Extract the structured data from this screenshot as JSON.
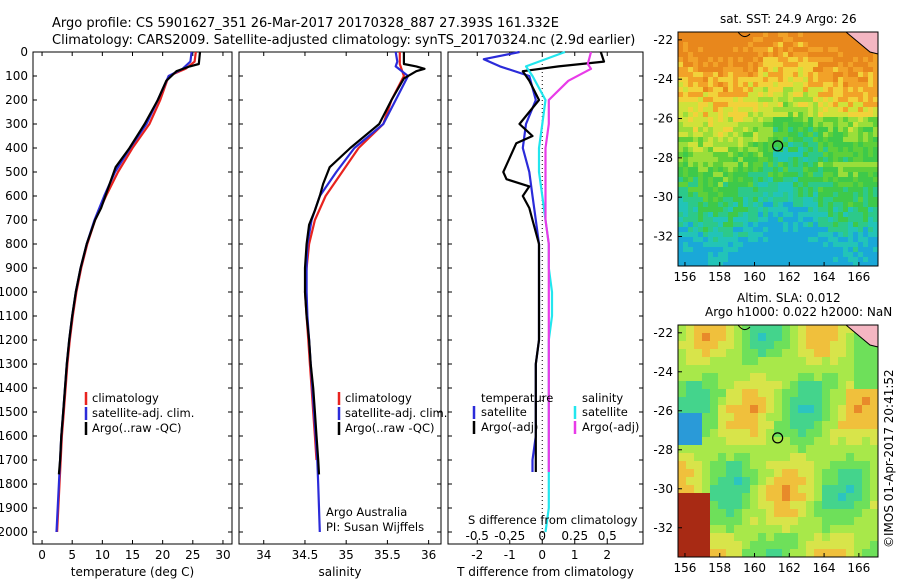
{
  "header": {
    "title_line1": "Argo profile: CS 5901627_351 26-Mar-2017 20170328_887 27.393S 161.332E",
    "title_line2": "Climatology: CARS2009. Satellite-adjusted climatology: synTS_20170324.nc (2.9d earlier)"
  },
  "colors": {
    "climatology": "#e8231f",
    "satellite": "#2b2bd9",
    "argo": "#000000",
    "sal_satellite": "#22e6ee",
    "sal_argo": "#e83be8"
  },
  "depth_axis": {
    "ticks": [
      0,
      100,
      200,
      300,
      400,
      500,
      600,
      700,
      800,
      900,
      1000,
      1100,
      1200,
      1300,
      1400,
      1500,
      1600,
      1700,
      1800,
      1900,
      2000
    ],
    "range": [
      0,
      2050
    ]
  },
  "credit": "©IMOS 01-Apr-2017 20:41:52",
  "chart_data": [
    {
      "id": "temperature",
      "type": "line",
      "xlabel": "temperature (deg C)",
      "xlim": [
        -1.5,
        31.5
      ],
      "xticks": [
        0,
        5,
        10,
        15,
        20,
        25,
        30
      ],
      "ylim": [
        0,
        2050
      ],
      "legend": [
        "climatology",
        "satellite-adj. clim.",
        "Argo(..raw -QC)"
      ],
      "series": [
        {
          "name": "climatology",
          "color": "#e8231f",
          "points": [
            [
              25.5,
              0
            ],
            [
              25.3,
              40
            ],
            [
              23.8,
              70
            ],
            [
              21,
              100
            ],
            [
              19.6,
              200
            ],
            [
              17.8,
              300
            ],
            [
              15,
              400
            ],
            [
              12.6,
              500
            ],
            [
              10.6,
              600
            ],
            [
              8.8,
              700
            ],
            [
              7.5,
              800
            ],
            [
              6.5,
              900
            ],
            [
              5.7,
              1000
            ],
            [
              5.1,
              1100
            ],
            [
              4.6,
              1200
            ],
            [
              4.2,
              1300
            ],
            [
              3.9,
              1400
            ],
            [
              3.6,
              1500
            ],
            [
              3.3,
              1600
            ],
            [
              3.1,
              1700
            ],
            [
              2.9,
              1800
            ],
            [
              2.7,
              1900
            ],
            [
              2.5,
              2000
            ]
          ]
        },
        {
          "name": "satellite-adj. clim.",
          "color": "#2b2bd9",
          "points": [
            [
              24.8,
              0
            ],
            [
              24.6,
              40
            ],
            [
              23.3,
              70
            ],
            [
              21,
              100
            ],
            [
              19.2,
              200
            ],
            [
              17.3,
              300
            ],
            [
              14.6,
              400
            ],
            [
              12.1,
              500
            ],
            [
              10.3,
              600
            ],
            [
              8.7,
              700
            ],
            [
              7.4,
              800
            ],
            [
              6.4,
              900
            ],
            [
              5.6,
              1000
            ],
            [
              5,
              1100
            ],
            [
              4.5,
              1200
            ],
            [
              4.1,
              1300
            ],
            [
              3.8,
              1400
            ],
            [
              3.5,
              1500
            ],
            [
              3.2,
              1600
            ],
            [
              3,
              1700
            ],
            [
              2.8,
              1800
            ],
            [
              2.6,
              1900
            ],
            [
              2.4,
              2000
            ]
          ]
        },
        {
          "name": "Argo(..raw -QC)",
          "color": "#000000",
          "points": [
            [
              26.2,
              0
            ],
            [
              26,
              50
            ],
            [
              24.5,
              60
            ],
            [
              22.3,
              80
            ],
            [
              20.6,
              120
            ],
            [
              19.2,
              200
            ],
            [
              17,
              300
            ],
            [
              14.5,
              400
            ],
            [
              12.2,
              480
            ],
            [
              11.2,
              550
            ],
            [
              9.8,
              650
            ],
            [
              8.8,
              700
            ],
            [
              7.4,
              800
            ],
            [
              6.4,
              900
            ],
            [
              5.6,
              1000
            ],
            [
              5,
              1100
            ],
            [
              4.5,
              1200
            ],
            [
              4.1,
              1300
            ],
            [
              3.8,
              1400
            ],
            [
              3.5,
              1500
            ],
            [
              3.2,
              1600
            ],
            [
              3,
              1700
            ],
            [
              2.8,
              1760
            ]
          ]
        }
      ]
    },
    {
      "id": "salinity",
      "type": "line",
      "xlabel": "salinity",
      "xlim": [
        33.7,
        36.15
      ],
      "xticks": [
        34,
        34.5,
        35,
        35.5,
        36
      ],
      "ylim": [
        0,
        2050
      ],
      "legend": [
        "climatology",
        "satellite-adj. clim.",
        "Argo(..raw -QC)"
      ],
      "annotation_line1": "Argo Australia",
      "annotation_line2": "PI: Susan Wijffels",
      "series": [
        {
          "name": "climatology",
          "color": "#e8231f",
          "points": [
            [
              35.65,
              0
            ],
            [
              35.65,
              50
            ],
            [
              35.7,
              100
            ],
            [
              35.55,
              200
            ],
            [
              35.45,
              300
            ],
            [
              35.15,
              400
            ],
            [
              34.95,
              500
            ],
            [
              34.75,
              600
            ],
            [
              34.62,
              700
            ],
            [
              34.55,
              800
            ],
            [
              34.52,
              900
            ],
            [
              34.5,
              1000
            ],
            [
              34.52,
              1100
            ],
            [
              34.54,
              1200
            ],
            [
              34.56,
              1300
            ],
            [
              34.58,
              1400
            ],
            [
              34.6,
              1500
            ],
            [
              34.62,
              1600
            ],
            [
              34.64,
              1700
            ]
          ]
        },
        {
          "name": "satellite-adj. clim.",
          "color": "#2b2bd9",
          "points": [
            [
              35.6,
              0
            ],
            [
              35.62,
              40
            ],
            [
              35.6,
              60
            ],
            [
              35.75,
              100
            ],
            [
              35.6,
              200
            ],
            [
              35.45,
              300
            ],
            [
              35.1,
              400
            ],
            [
              34.88,
              500
            ],
            [
              34.68,
              600
            ],
            [
              34.58,
              700
            ],
            [
              34.53,
              800
            ],
            [
              34.52,
              900
            ],
            [
              34.52,
              1000
            ],
            [
              34.53,
              1100
            ],
            [
              34.55,
              1200
            ],
            [
              34.57,
              1300
            ],
            [
              34.59,
              1400
            ],
            [
              34.61,
              1500
            ],
            [
              34.63,
              1600
            ],
            [
              34.65,
              1700
            ],
            [
              34.66,
              1800
            ],
            [
              34.67,
              1900
            ],
            [
              34.68,
              2000
            ]
          ]
        },
        {
          "name": "Argo(..raw -QC)",
          "color": "#000000",
          "points": [
            [
              35.7,
              0
            ],
            [
              35.7,
              50
            ],
            [
              35.85,
              60
            ],
            [
              35.95,
              70
            ],
            [
              35.85,
              80
            ],
            [
              35.7,
              110
            ],
            [
              35.55,
              200
            ],
            [
              35.4,
              300
            ],
            [
              35.05,
              400
            ],
            [
              34.8,
              480
            ],
            [
              34.72,
              550
            ],
            [
              34.68,
              600
            ],
            [
              34.62,
              660
            ],
            [
              34.55,
              720
            ],
            [
              34.52,
              800
            ],
            [
              34.5,
              900
            ],
            [
              34.5,
              1000
            ],
            [
              34.52,
              1100
            ],
            [
              34.55,
              1200
            ],
            [
              34.57,
              1300
            ],
            [
              34.6,
              1400
            ],
            [
              34.62,
              1500
            ],
            [
              34.64,
              1600
            ],
            [
              34.66,
              1700
            ],
            [
              34.67,
              1760
            ]
          ]
        }
      ]
    },
    {
      "id": "difference",
      "type": "line",
      "xlabel": "T difference from climatology",
      "xlabel_top": "S difference from climatology",
      "xlim": [
        -2.9,
        3.1
      ],
      "xticks": [
        -2,
        -1,
        0,
        1,
        2
      ],
      "xticks_top": [
        "-0.5",
        "-0.25",
        "0",
        "0.25",
        "0.5"
      ],
      "xticks_top_pos": [
        -2,
        -1,
        0,
        1,
        2
      ],
      "ylim": [
        0,
        2050
      ],
      "legend_temperature": {
        "heading": "temperature",
        "items": [
          "satellite",
          "Argo(-adj)"
        ]
      },
      "legend_salinity": {
        "heading": "salinity",
        "items": [
          "satellite",
          "Argo(-adj)"
        ]
      },
      "series": [
        {
          "name": "T satellite",
          "color": "#2b2bd9",
          "points": [
            [
              -0.7,
              0
            ],
            [
              -1.8,
              30
            ],
            [
              -1.3,
              60
            ],
            [
              -0.4,
              100
            ],
            [
              -0.2,
              200
            ],
            [
              -0.5,
              300
            ],
            [
              -0.6,
              400
            ],
            [
              -0.4,
              500
            ],
            [
              -0.3,
              600
            ],
            [
              -0.2,
              700
            ],
            [
              -0.1,
              800
            ],
            [
              -0.1,
              900
            ],
            [
              -0.1,
              1000
            ],
            [
              -0.1,
              1100
            ],
            [
              -0.1,
              1200
            ],
            [
              -0.2,
              1300
            ],
            [
              -0.2,
              1400
            ],
            [
              -0.2,
              1500
            ],
            [
              -0.2,
              1600
            ],
            [
              -0.3,
              1700
            ],
            [
              -0.3,
              1750
            ]
          ]
        },
        {
          "name": "T Argo(-adj)",
          "color": "#000000",
          "points": [
            [
              1.8,
              0
            ],
            [
              1.9,
              40
            ],
            [
              0.5,
              60
            ],
            [
              -0.6,
              80
            ],
            [
              -0.4,
              120
            ],
            [
              -0.1,
              200
            ],
            [
              -0.7,
              300
            ],
            [
              -0.3,
              350
            ],
            [
              -0.8,
              380
            ],
            [
              -1.2,
              500
            ],
            [
              -1.1,
              530
            ],
            [
              -0.4,
              560
            ],
            [
              -0.6,
              600
            ],
            [
              -0.4,
              650
            ],
            [
              -0.3,
              700
            ],
            [
              -0.1,
              800
            ],
            [
              -0.1,
              900
            ],
            [
              -0.1,
              1000
            ],
            [
              -0.1,
              1100
            ],
            [
              -0.1,
              1200
            ],
            [
              -0.2,
              1300
            ],
            [
              -0.2,
              1400
            ],
            [
              -0.2,
              1500
            ],
            [
              -0.2,
              1600
            ],
            [
              -0.2,
              1700
            ],
            [
              -0.2,
              1750
            ]
          ]
        },
        {
          "name": "S satellite",
          "color": "#22e6ee",
          "points": [
            [
              0.7,
              0
            ],
            [
              -0.5,
              60
            ],
            [
              -0.3,
              100
            ],
            [
              0.1,
              200
            ],
            [
              0,
              300
            ],
            [
              -0.1,
              400
            ],
            [
              -0.1,
              500
            ],
            [
              0,
              600
            ],
            [
              0.1,
              700
            ],
            [
              0.2,
              800
            ],
            [
              0.2,
              900
            ],
            [
              0.3,
              1000
            ],
            [
              0.3,
              1100
            ],
            [
              0.2,
              1200
            ],
            [
              0.2,
              1300
            ],
            [
              0.2,
              1400
            ],
            [
              0.2,
              1500
            ],
            [
              0.2,
              1600
            ],
            [
              0.2,
              1700
            ],
            [
              0.2,
              1800
            ],
            [
              0.2,
              1900
            ],
            [
              0.1,
              2000
            ]
          ]
        },
        {
          "name": "S Argo(-adj)",
          "color": "#e83be8",
          "points": [
            [
              1.5,
              0
            ],
            [
              1.4,
              50
            ],
            [
              1.5,
              70
            ],
            [
              0.8,
              120
            ],
            [
              0.2,
              200
            ],
            [
              0.2,
              300
            ],
            [
              0.1,
              400
            ],
            [
              0.1,
              500
            ],
            [
              0.1,
              600
            ],
            [
              0.1,
              700
            ],
            [
              0.2,
              800
            ],
            [
              0.2,
              900
            ],
            [
              0.2,
              1000
            ],
            [
              0.2,
              1100
            ],
            [
              0.2,
              1200
            ],
            [
              0.2,
              1300
            ],
            [
              0.2,
              1400
            ],
            [
              0.2,
              1500
            ],
            [
              0.2,
              1600
            ],
            [
              0.2,
              1700
            ],
            [
              0.2,
              1750
            ]
          ]
        }
      ]
    },
    {
      "id": "sst_map",
      "type": "heatmap",
      "title": "sat. SST: 24.9  Argo: 26",
      "xticks": [
        156,
        158,
        160,
        162,
        164,
        166
      ],
      "yticks": [
        -22,
        -24,
        -26,
        -28,
        -30,
        -32
      ],
      "xlim": [
        155.6,
        167.1
      ],
      "ylim": [
        -33.5,
        -21.6
      ],
      "profile_location": [
        161.33,
        -27.39
      ]
    },
    {
      "id": "sla_map",
      "type": "heatmap",
      "title_line1": "Altim. SLA: 0.012",
      "title_line2": "Argo h1000: 0.022 h2000: NaN",
      "xticks": [
        156,
        158,
        160,
        162,
        164,
        166
      ],
      "yticks": [
        -22,
        -24,
        -26,
        -28,
        -30,
        -32
      ],
      "xlim": [
        155.6,
        167.1
      ],
      "ylim": [
        -33.5,
        -21.6
      ],
      "profile_location": [
        161.33,
        -27.39
      ]
    }
  ]
}
